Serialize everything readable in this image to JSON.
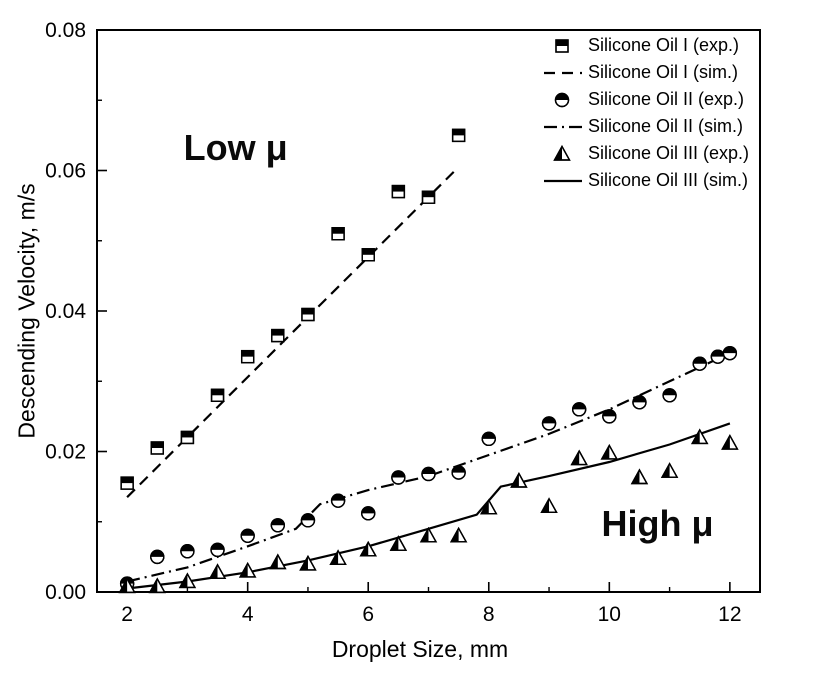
{
  "figure": {
    "background": "#ffffff",
    "foreground": "#000000"
  },
  "chart_data": {
    "type": "scatter",
    "title": "",
    "xlabel": "Droplet Size, mm",
    "ylabel": "Descending Velocity, m/s",
    "xlim": [
      1.5,
      12.5
    ],
    "ylim": [
      0,
      0.08
    ],
    "grid": false,
    "legend_position": "top-right-inside",
    "x_major_ticks": {
      "values": [
        2,
        4,
        6,
        8,
        10,
        12
      ],
      "labels": [
        "2",
        "4",
        "6",
        "8",
        "10",
        "12"
      ]
    },
    "x_minor_ticks": [
      3,
      5,
      7,
      9,
      11
    ],
    "y_major_ticks": {
      "values": [
        0,
        0.02,
        0.04,
        0.06,
        0.08
      ],
      "labels": [
        "0.00",
        "0.02",
        "0.04",
        "0.06",
        "0.08"
      ]
    },
    "y_minor_ticks": [
      0.01,
      0.03,
      0.05,
      0.07
    ],
    "annotations": [
      {
        "text": "Low μ",
        "x": 3.8,
        "y": 0.0615
      },
      {
        "text": "High μ",
        "x": 10.8,
        "y": 0.008
      }
    ],
    "series": [
      {
        "name": "Silicone Oil I (sim.)",
        "kind": "line",
        "dash": "dashed",
        "points": [
          [
            2,
            0.0135
          ],
          [
            7.5,
            0.0605
          ]
        ]
      },
      {
        "name": "Silicone Oil II (sim.)",
        "kind": "line",
        "dash": "dashdot",
        "points": [
          [
            2,
            0.0015
          ],
          [
            3,
            0.0035
          ],
          [
            4,
            0.0065
          ],
          [
            4.8,
            0.009
          ],
          [
            5.2,
            0.0125
          ],
          [
            6,
            0.0145
          ],
          [
            7,
            0.0165
          ],
          [
            8,
            0.0195
          ],
          [
            9,
            0.0225
          ],
          [
            10,
            0.026
          ],
          [
            11,
            0.03
          ],
          [
            12,
            0.034
          ]
        ]
      },
      {
        "name": "Silicone Oil III (sim.)",
        "kind": "line",
        "dash": "solid",
        "points": [
          [
            2,
            0.0005
          ],
          [
            3,
            0.0015
          ],
          [
            4,
            0.0028
          ],
          [
            5,
            0.0045
          ],
          [
            6,
            0.0065
          ],
          [
            7,
            0.009
          ],
          [
            7.8,
            0.011
          ],
          [
            8.2,
            0.015
          ],
          [
            9,
            0.0165
          ],
          [
            10,
            0.0185
          ],
          [
            11,
            0.021
          ],
          [
            12,
            0.024
          ]
        ]
      },
      {
        "name": "Silicone Oil I (exp.)",
        "kind": "scatter",
        "marker": "square",
        "points": [
          [
            2,
            0.0155
          ],
          [
            2.5,
            0.0205
          ],
          [
            3,
            0.022
          ],
          [
            3.5,
            0.028
          ],
          [
            4,
            0.0335
          ],
          [
            4.5,
            0.0365
          ],
          [
            5,
            0.0395
          ],
          [
            5.5,
            0.051
          ],
          [
            6,
            0.048
          ],
          [
            6.5,
            0.057
          ],
          [
            7,
            0.0562
          ],
          [
            7.5,
            0.065
          ]
        ]
      },
      {
        "name": "Silicone Oil II (exp.)",
        "kind": "scatter",
        "marker": "circle",
        "points": [
          [
            2,
            0.0012
          ],
          [
            2.5,
            0.005
          ],
          [
            3,
            0.0058
          ],
          [
            3.5,
            0.006
          ],
          [
            4,
            0.008
          ],
          [
            4.5,
            0.0095
          ],
          [
            5,
            0.0102
          ],
          [
            5.5,
            0.013
          ],
          [
            6,
            0.0112
          ],
          [
            6.5,
            0.0163
          ],
          [
            7,
            0.0168
          ],
          [
            7.5,
            0.017
          ],
          [
            8,
            0.0218
          ],
          [
            9,
            0.024
          ],
          [
            9.5,
            0.026
          ],
          [
            10,
            0.025
          ],
          [
            10.5,
            0.027
          ],
          [
            11,
            0.028
          ],
          [
            11.5,
            0.0325
          ],
          [
            11.8,
            0.0335
          ],
          [
            12,
            0.034
          ]
        ]
      },
      {
        "name": "Silicone Oil III (exp.)",
        "kind": "scatter",
        "marker": "triangle",
        "points": [
          [
            2,
            0.0008
          ],
          [
            2.5,
            0.0008
          ],
          [
            3,
            0.0015
          ],
          [
            3.5,
            0.0028
          ],
          [
            4,
            0.003
          ],
          [
            4.5,
            0.0042
          ],
          [
            5,
            0.004
          ],
          [
            5.5,
            0.0048
          ],
          [
            6,
            0.006
          ],
          [
            6.5,
            0.0068
          ],
          [
            7,
            0.008
          ],
          [
            7.5,
            0.008
          ],
          [
            8,
            0.012
          ],
          [
            8.5,
            0.0158
          ],
          [
            9,
            0.0122
          ],
          [
            9.5,
            0.019
          ],
          [
            10,
            0.0198
          ],
          [
            10.5,
            0.0163
          ],
          [
            11,
            0.0172
          ],
          [
            11.5,
            0.022
          ],
          [
            12,
            0.0212
          ]
        ]
      }
    ],
    "legend_order": [
      {
        "label": "Silicone Oil I (exp.)",
        "swatch": "square"
      },
      {
        "label": "Silicone Oil I (sim.)",
        "swatch": "dashed"
      },
      {
        "label": "Silicone Oil II (exp.)",
        "swatch": "circle"
      },
      {
        "label": "Silicone Oil II (sim.)",
        "swatch": "dashdot"
      },
      {
        "label": "Silicone Oil III (exp.)",
        "swatch": "triangle"
      },
      {
        "label": "Silicone Oil III (sim.)",
        "swatch": "solid"
      }
    ]
  }
}
